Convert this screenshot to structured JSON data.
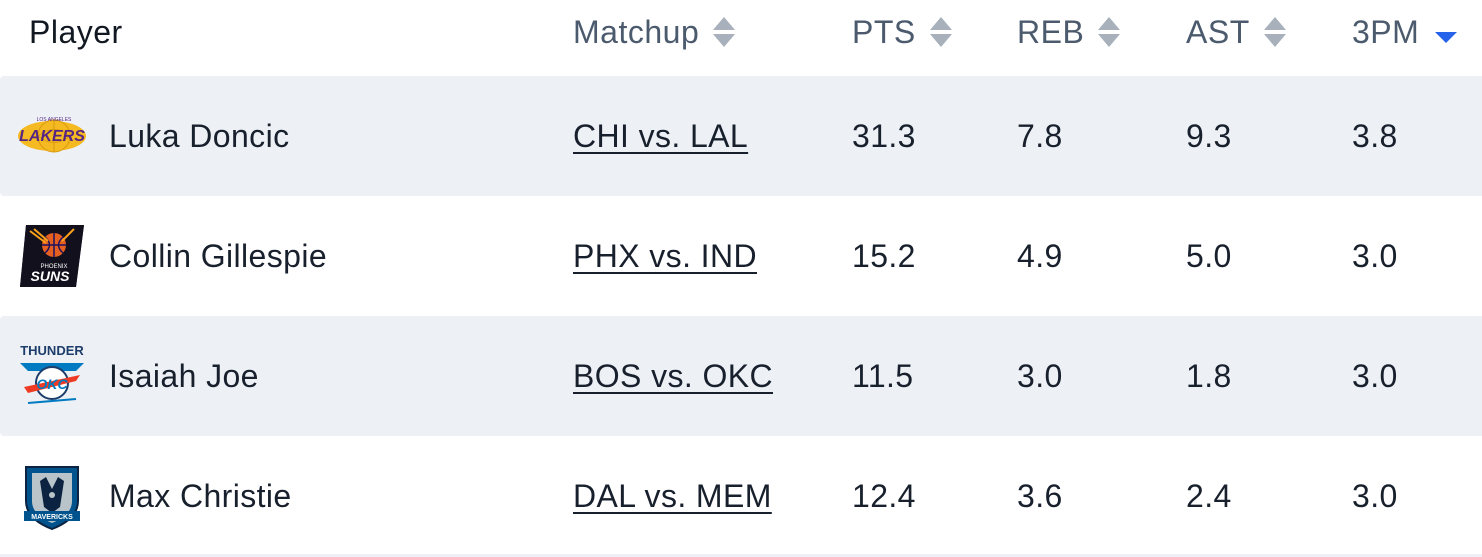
{
  "header": {
    "player": "Player",
    "matchup": "Matchup",
    "pts": "PTS",
    "reb": "REB",
    "ast": "AST",
    "three_pm": "3PM",
    "active_sort": "3PM",
    "active_sort_color": "#2563eb"
  },
  "rows": [
    {
      "team_icon": "lakers-logo-icon",
      "player": "Luka Doncic",
      "matchup": "CHI vs. LAL",
      "pts": "31.3",
      "reb": "7.8",
      "ast": "9.3",
      "three_pm": "3.8"
    },
    {
      "team_icon": "suns-logo-icon",
      "player": "Collin Gillespie",
      "matchup": "PHX vs. IND",
      "pts": "15.2",
      "reb": "4.9",
      "ast": "5.0",
      "three_pm": "3.0"
    },
    {
      "team_icon": "thunder-logo-icon",
      "player": "Isaiah Joe",
      "matchup": "BOS vs. OKC",
      "pts": "11.5",
      "reb": "3.0",
      "ast": "1.8",
      "three_pm": "3.0"
    },
    {
      "team_icon": "mavericks-logo-icon",
      "player": "Max Christie",
      "matchup": "DAL vs. MEM",
      "pts": "12.4",
      "reb": "3.6",
      "ast": "2.4",
      "three_pm": "3.0"
    }
  ],
  "colors": {
    "row_alt_bg": "#edf0f5",
    "header_text": "#4b5a6d",
    "body_text": "#17202c"
  }
}
